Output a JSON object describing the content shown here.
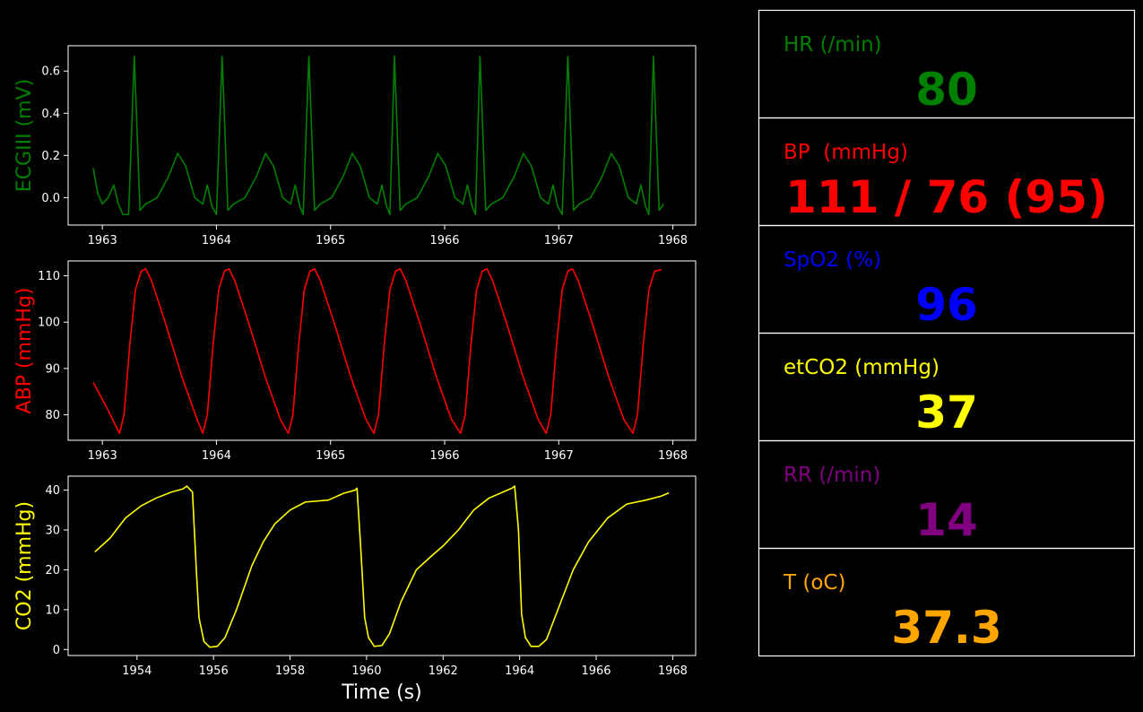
{
  "chart_data": [
    {
      "type": "line",
      "ylabel": "ECGIII (mV)",
      "label_color": "#008000",
      "xlim": [
        1962.7,
        1968.2
      ],
      "xticks": [
        1963,
        1964,
        1965,
        1966,
        1967,
        1968
      ],
      "ylim": [
        -0.13,
        0.72
      ],
      "yticks": [
        {
          "value": 0,
          "label": "0.0"
        },
        0.2,
        0.4,
        0.6
      ],
      "series": [
        {
          "name": "ECGIII",
          "color": "#008000",
          "x": [
            1962.92,
            1962.96,
            1963.0,
            1963.05,
            1963.1,
            1963.14,
            1963.18,
            1963.23,
            1963.28,
            1963.33,
            1963.38,
            1963.48,
            1963.58,
            1963.66,
            1963.73,
            1963.81,
            1963.88,
            1963.92,
            1963.96,
            1964.0,
            1964.05,
            1964.1,
            1964.15,
            1964.25,
            1964.35,
            1964.43,
            1964.5,
            1964.58,
            1964.65,
            1964.69,
            1964.73,
            1964.76,
            1964.81,
            1964.86,
            1964.91,
            1965.01,
            1965.11,
            1965.19,
            1965.26,
            1965.34,
            1965.41,
            1965.45,
            1965.49,
            1965.52,
            1965.56,
            1965.61,
            1965.66,
            1965.76,
            1965.86,
            1965.94,
            1966.01,
            1966.09,
            1966.16,
            1966.2,
            1966.24,
            1966.27,
            1966.31,
            1966.36,
            1966.41,
            1966.51,
            1966.61,
            1966.69,
            1966.76,
            1966.84,
            1966.91,
            1966.95,
            1966.99,
            1967.03,
            1967.08,
            1967.13,
            1967.18,
            1967.28,
            1967.38,
            1967.46,
            1967.53,
            1967.61,
            1967.68,
            1967.72,
            1967.76,
            1967.79,
            1967.83,
            1967.88,
            1967.92
          ],
          "values": [
            0.14,
            0.02,
            -0.03,
            0.0,
            0.06,
            -0.03,
            -0.08,
            -0.08,
            0.67,
            -0.06,
            -0.03,
            0.0,
            0.1,
            0.21,
            0.15,
            0.0,
            -0.03,
            0.06,
            -0.04,
            -0.08,
            0.67,
            -0.06,
            -0.03,
            0.0,
            0.1,
            0.21,
            0.15,
            0.0,
            -0.03,
            0.06,
            -0.04,
            -0.08,
            0.67,
            -0.06,
            -0.03,
            0.0,
            0.1,
            0.21,
            0.15,
            0.0,
            -0.03,
            0.06,
            -0.04,
            -0.08,
            0.67,
            -0.06,
            -0.03,
            0.0,
            0.1,
            0.21,
            0.15,
            0.0,
            -0.03,
            0.06,
            -0.04,
            -0.08,
            0.67,
            -0.06,
            -0.03,
            0.0,
            0.1,
            0.21,
            0.15,
            0.0,
            -0.03,
            0.06,
            -0.04,
            -0.08,
            0.67,
            -0.06,
            -0.03,
            0.0,
            0.1,
            0.21,
            0.15,
            0.0,
            -0.03,
            0.06,
            -0.04,
            -0.08,
            0.67,
            -0.06,
            -0.03
          ]
        }
      ]
    },
    {
      "type": "line",
      "ylabel": "ABP (mmHg)",
      "label_color": "#ff0000",
      "xlim": [
        1962.7,
        1968.2
      ],
      "xticks": [
        1963,
        1964,
        1965,
        1966,
        1967,
        1968
      ],
      "ylim": [
        74.5,
        113.2
      ],
      "yticks": [
        80,
        90,
        100,
        110
      ],
      "series": [
        {
          "name": "ABP",
          "color": "#ff0000",
          "x": [
            1962.92,
            1963.05,
            1963.15,
            1963.19,
            1963.24,
            1963.29,
            1963.34,
            1963.38,
            1963.43,
            1963.55,
            1963.7,
            1963.83,
            1963.88,
            1963.92,
            1963.97,
            1964.02,
            1964.07,
            1964.11,
            1964.16,
            1964.28,
            1964.43,
            1964.56,
            1964.63,
            1964.67,
            1964.72,
            1964.77,
            1964.82,
            1964.86,
            1964.91,
            1965.03,
            1965.18,
            1965.31,
            1965.38,
            1965.42,
            1965.47,
            1965.52,
            1965.57,
            1965.61,
            1965.66,
            1965.78,
            1965.93,
            1966.06,
            1966.14,
            1966.18,
            1966.23,
            1966.28,
            1966.33,
            1966.37,
            1966.42,
            1966.54,
            1966.69,
            1966.82,
            1966.89,
            1966.93,
            1966.98,
            1967.03,
            1967.08,
            1967.12,
            1967.17,
            1967.29,
            1967.44,
            1967.57,
            1967.65,
            1967.69,
            1967.74,
            1967.79,
            1967.84,
            1967.9
          ],
          "values": [
            87,
            81,
            76,
            80,
            95,
            107,
            111,
            111.5,
            109,
            100,
            88,
            79,
            76,
            80,
            95,
            107,
            111,
            111.5,
            109,
            100,
            88,
            79,
            76,
            80,
            95,
            107,
            111,
            111.5,
            109,
            100,
            88,
            79,
            76,
            80,
            95,
            107,
            111,
            111.5,
            109,
            100,
            88,
            79,
            76,
            80,
            95,
            107,
            111,
            111.5,
            109,
            100,
            88,
            79,
            76,
            80,
            95,
            107,
            111,
            111.5,
            109,
            100,
            88,
            79,
            76,
            80,
            95,
            107,
            111,
            111.3
          ]
        }
      ]
    },
    {
      "type": "line",
      "ylabel": "CO2 (mmHg)",
      "label_color": "#ffff00",
      "xlabel": "Time (s)",
      "xlim": [
        1952.2,
        1968.6
      ],
      "xticks": [
        1954,
        1956,
        1958,
        1960,
        1962,
        1964,
        1966,
        1968
      ],
      "ylim": [
        -1.5,
        43.5
      ],
      "yticks": [
        0,
        10,
        20,
        30,
        40
      ],
      "series": [
        {
          "name": "CO2",
          "color": "#ffff00",
          "x": [
            1952.9,
            1953.3,
            1953.7,
            1954.1,
            1954.5,
            1954.9,
            1955.2,
            1955.3,
            1955.45,
            1955.55,
            1955.62,
            1955.75,
            1955.9,
            1956.1,
            1956.3,
            1956.6,
            1957.0,
            1957.3,
            1957.6,
            1958.0,
            1958.4,
            1959.0,
            1959.4,
            1959.7,
            1959.75,
            1959.85,
            1959.95,
            1960.05,
            1960.2,
            1960.4,
            1960.6,
            1960.9,
            1961.3,
            1961.7,
            1962.0,
            1962.4,
            1962.8,
            1963.2,
            1963.8,
            1963.87,
            1963.97,
            1964.05,
            1964.15,
            1964.3,
            1964.5,
            1964.7,
            1965.0,
            1965.4,
            1965.8,
            1966.3,
            1966.8,
            1967.3,
            1967.7,
            1967.9
          ],
          "values": [
            24.5,
            28,
            33,
            36,
            38,
            39.5,
            40.3,
            41,
            39.5,
            20,
            8,
            2,
            0.6,
            0.8,
            3,
            10,
            21,
            27,
            31.5,
            35,
            37,
            37.5,
            39.2,
            40,
            40.5,
            25,
            8,
            3,
            0.8,
            1,
            4,
            12,
            20,
            23.5,
            26,
            30,
            35,
            38,
            40.5,
            41,
            30,
            9,
            3,
            0.8,
            0.8,
            2.5,
            10,
            20,
            27,
            33,
            36.5,
            37.5,
            38.5,
            39.3
          ]
        }
      ]
    }
  ],
  "panel": [
    {
      "label": "HR (/min)",
      "value": 80,
      "color": "#008000"
    },
    {
      "label": "BP  (mmHg)",
      "value": "111 / 76 (95)",
      "color": "#ff0000"
    },
    {
      "label": "SpO2 (%)",
      "value": 96,
      "color": "#0000ff"
    },
    {
      "label": "etCO2 (mmHg)",
      "value": 37,
      "color": "#ffff00"
    },
    {
      "label": "RR (/min)",
      "value": 14,
      "color": "#800080"
    },
    {
      "label": "T (oC)",
      "value": 37.3,
      "color": "#ffa500"
    }
  ]
}
